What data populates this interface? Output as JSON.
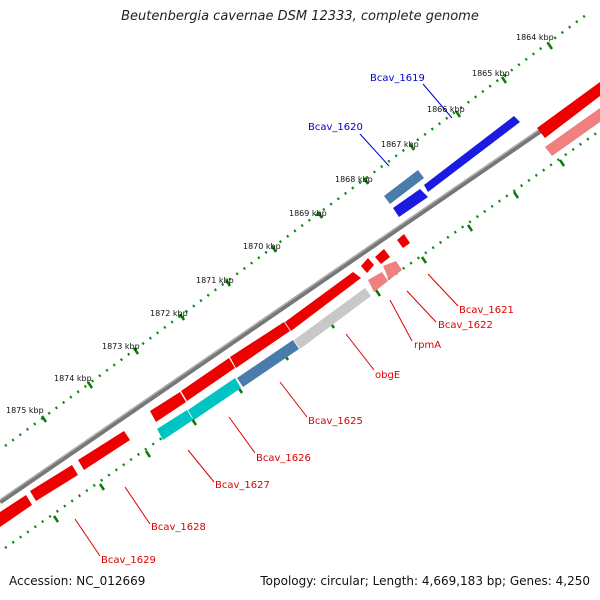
{
  "title": "Beutenbergia cavernae DSM 12333, complete genome",
  "accession": "Accession: NC_012669",
  "topology": "Topology: circular; Length: 4,669,183 bp; Genes: 4,250",
  "colors": {
    "forward_gene": "#ff0000",
    "reverse_gene_light": "#f08080",
    "highlight_blue": "#0000ee",
    "steel_blue": "#4682b4",
    "cyan": "#00c8c8",
    "gray_gene": "#c8c8c8",
    "backbone": "#888888",
    "tick": "#007700",
    "label_red": "#dd0000",
    "label_blue": "#0000cc"
  },
  "kbp_labels": [
    {
      "label": "1864 kbp",
      "pos": 1864
    },
    {
      "label": "1865 kbp",
      "pos": 1865
    },
    {
      "label": "1866 kbp",
      "pos": 1866
    },
    {
      "label": "1867 kbp",
      "pos": 1867
    },
    {
      "label": "1868 kbp",
      "pos": 1868
    },
    {
      "label": "1869 kbp",
      "pos": 1869
    },
    {
      "label": "1870 kbp",
      "pos": 1870
    },
    {
      "label": "1871 kbp",
      "pos": 1871
    },
    {
      "label": "1872 kbp",
      "pos": 1872
    },
    {
      "label": "1873 kbp",
      "pos": 1873
    },
    {
      "label": "1874 kbp",
      "pos": 1874
    },
    {
      "label": "1875 kbp",
      "pos": 1875
    }
  ],
  "gene_labels": [
    {
      "name": "Bcav_1619",
      "color": "blue"
    },
    {
      "name": "Bcav_1620",
      "color": "blue"
    },
    {
      "name": "Bcav_1621",
      "color": "red"
    },
    {
      "name": "Bcav_1622",
      "color": "red"
    },
    {
      "name": "rpmA",
      "color": "red"
    },
    {
      "name": "obgE",
      "color": "red"
    },
    {
      "name": "Bcav_1625",
      "color": "red"
    },
    {
      "name": "Bcav_1626",
      "color": "red"
    },
    {
      "name": "Bcav_1627",
      "color": "red"
    },
    {
      "name": "Bcav_1628",
      "color": "red"
    },
    {
      "name": "Bcav_1629",
      "color": "red"
    }
  ]
}
